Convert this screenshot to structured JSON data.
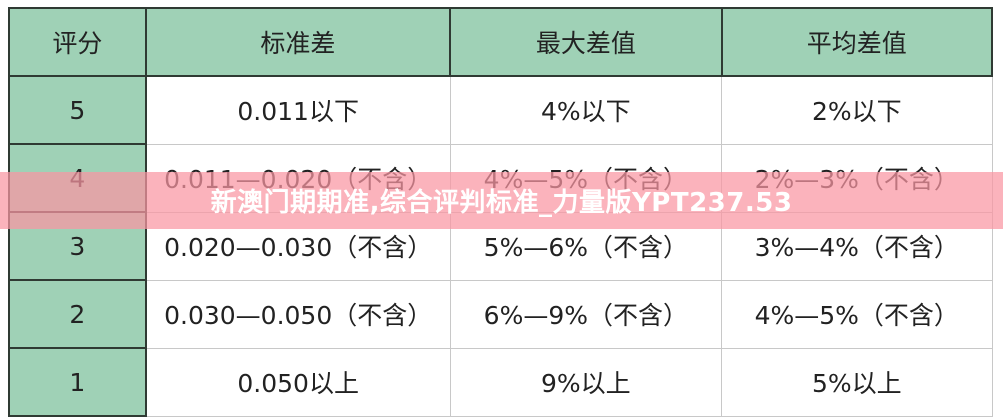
{
  "table": {
    "headers": [
      "评分",
      "标准差",
      "最大差值",
      "平均差值"
    ],
    "rows": [
      [
        "5",
        "0.011以下",
        "4%以下",
        "2%以下"
      ],
      [
        "4",
        "0.011—0.020（不含）",
        "4%—5%（不含）",
        "2%—3%（不含）"
      ],
      [
        "3",
        "0.020—0.030（不含）",
        "5%—6%（不含）",
        "3%—4%（不含）"
      ],
      [
        "2",
        "0.030—0.050（不含）",
        "6%—9%（不含）",
        "4%—5%（不含）"
      ],
      [
        "1",
        "0.050以上",
        "9%以上",
        "5%以上"
      ]
    ]
  },
  "banner": {
    "title": "新澳门期期准,综合评判标准_力量版YPT237.53"
  },
  "colors": {
    "header_bg": "#9fd1b6",
    "banner_bg": "#fa96a2"
  }
}
